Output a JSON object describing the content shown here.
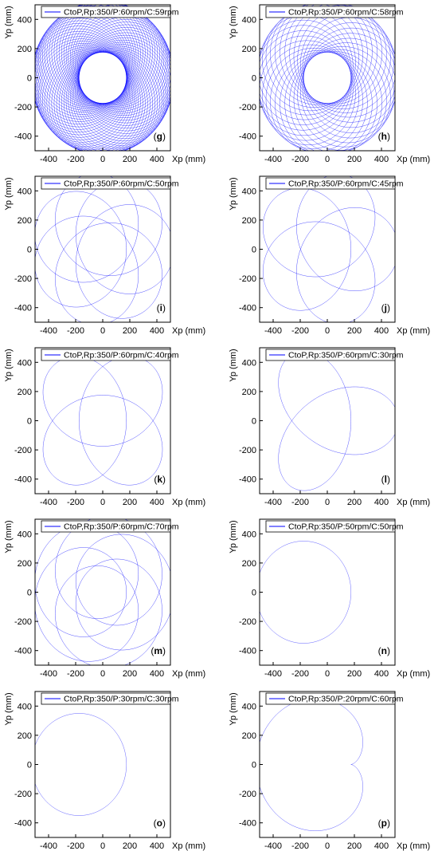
{
  "chart_data": [
    {
      "type": "line",
      "panel_label": "g",
      "legend": "CtoP,Rp:350/P:60rpm/C:59rpm",
      "series": [
        {
          "name": "CtoP,Rp:350/P:60rpm/C:59rpm",
          "color": "#0000ff"
        }
      ],
      "xlabel": "Xp (mm)",
      "ylabel": "Yp (mm)",
      "xlim": [
        -500,
        500
      ],
      "ylim": [
        -500,
        500
      ],
      "xticks": [
        -400,
        -200,
        0,
        200,
        400
      ],
      "yticks": [
        -400,
        -200,
        0,
        200,
        400
      ],
      "R": 350,
      "P_rpm": 60,
      "C_rpm": 59
    },
    {
      "type": "line",
      "panel_label": "h",
      "legend": "CtoP,Rp:350/P:60rpm/C:58rpm",
      "series": [
        {
          "name": "CtoP,Rp:350/P:60rpm/C:58rpm",
          "color": "#0000ff"
        }
      ],
      "xlabel": "Xp (mm)",
      "ylabel": "Yp (mm)",
      "xlim": [
        -500,
        500
      ],
      "ylim": [
        -500,
        500
      ],
      "xticks": [
        -400,
        -200,
        0,
        200,
        400
      ],
      "yticks": [
        -400,
        -200,
        0,
        200,
        400
      ],
      "R": 350,
      "P_rpm": 60,
      "C_rpm": 58
    },
    {
      "type": "line",
      "panel_label": "i",
      "legend": "CtoP,Rp:350/P:60rpm/C:50rpm",
      "series": [
        {
          "name": "CtoP,Rp:350/P:60rpm/C:50rpm",
          "color": "#0000ff"
        }
      ],
      "xlabel": "Xp (mm)",
      "ylabel": "Yp (mm)",
      "xlim": [
        -500,
        500
      ],
      "ylim": [
        -500,
        500
      ],
      "xticks": [
        -400,
        -200,
        0,
        200,
        400
      ],
      "yticks": [
        -400,
        -200,
        0,
        200,
        400
      ],
      "R": 350,
      "P_rpm": 60,
      "C_rpm": 50
    },
    {
      "type": "line",
      "panel_label": "j",
      "legend": "CtoP,Rp:350/P:60rpm/C:45rpm",
      "series": [
        {
          "name": "CtoP,Rp:350/P:60rpm/C:45rpm",
          "color": "#0000ff"
        }
      ],
      "xlabel": "Xp (mm)",
      "ylabel": "Yp (mm)",
      "xlim": [
        -500,
        500
      ],
      "ylim": [
        -500,
        500
      ],
      "xticks": [
        -400,
        -200,
        0,
        200,
        400
      ],
      "yticks": [
        -400,
        -200,
        0,
        200,
        400
      ],
      "R": 350,
      "P_rpm": 60,
      "C_rpm": 45
    },
    {
      "type": "line",
      "panel_label": "k",
      "legend": "CtoP,Rp:350/P:60rpm/C:40rpm",
      "series": [
        {
          "name": "CtoP,Rp:350/P:60rpm/C:40rpm",
          "color": "#0000ff"
        }
      ],
      "xlabel": "Xp (mm)",
      "ylabel": "Yp (mm)",
      "xlim": [
        -500,
        500
      ],
      "ylim": [
        -500,
        500
      ],
      "xticks": [
        -400,
        -200,
        0,
        200,
        400
      ],
      "yticks": [
        -400,
        -200,
        0,
        200,
        400
      ],
      "R": 350,
      "P_rpm": 60,
      "C_rpm": 40
    },
    {
      "type": "line",
      "panel_label": "l",
      "legend": "CtoP,Rp:350/P:60rpm/C:30rpm",
      "series": [
        {
          "name": "CtoP,Rp:350/P:60rpm/C:30rpm",
          "color": "#0000ff"
        }
      ],
      "xlabel": "Xp (mm)",
      "ylabel": "Yp (mm)",
      "xlim": [
        -500,
        500
      ],
      "ylim": [
        -500,
        500
      ],
      "xticks": [
        -400,
        -200,
        0,
        200,
        400
      ],
      "yticks": [
        -400,
        -200,
        0,
        200,
        400
      ],
      "R": 350,
      "P_rpm": 60,
      "C_rpm": 30
    },
    {
      "type": "line",
      "panel_label": "m",
      "legend": "CtoP,Rp:350/P:60rpm/C:70rpm",
      "series": [
        {
          "name": "CtoP,Rp:350/P:60rpm/C:70rpm",
          "color": "#0000ff"
        }
      ],
      "xlabel": "Xp (mm)",
      "ylabel": "Yp (mm)",
      "xlim": [
        -500,
        500
      ],
      "ylim": [
        -500,
        500
      ],
      "xticks": [
        -400,
        -200,
        0,
        200,
        400
      ],
      "yticks": [
        -400,
        -200,
        0,
        200,
        400
      ],
      "R": 350,
      "P_rpm": 60,
      "C_rpm": 70
    },
    {
      "type": "line",
      "panel_label": "n",
      "legend": "CtoP,Rp:350/P:50rpm/C:50rpm",
      "series": [
        {
          "name": "CtoP,Rp:350/P:50rpm/C:50rpm",
          "color": "#0000ff"
        }
      ],
      "xlabel": "Xp (mm)",
      "ylabel": "Yp (mm)",
      "xlim": [
        -500,
        500
      ],
      "ylim": [
        -500,
        500
      ],
      "xticks": [
        -400,
        -200,
        0,
        200,
        400
      ],
      "yticks": [
        -400,
        -200,
        0,
        200,
        400
      ],
      "R": 350,
      "P_rpm": 50,
      "C_rpm": 50
    },
    {
      "type": "line",
      "panel_label": "o",
      "legend": "CtoP,Rp:350/P:30rpm/C:30rpm",
      "series": [
        {
          "name": "CtoP,Rp:350/P:30rpm/C:30rpm",
          "color": "#0000ff"
        }
      ],
      "xlabel": "Xp (mm)",
      "ylabel": "Yp (mm)",
      "xlim": [
        -500,
        500
      ],
      "ylim": [
        -500,
        500
      ],
      "xticks": [
        -400,
        -200,
        0,
        200,
        400
      ],
      "yticks": [
        -400,
        -200,
        0,
        200,
        400
      ],
      "R": 350,
      "P_rpm": 30,
      "C_rpm": 30
    },
    {
      "type": "line",
      "panel_label": "p",
      "legend": "CtoP,Rp:350/P:20rpm/C:60rpm",
      "series": [
        {
          "name": "CtoP,Rp:350/P:20rpm/C:60rpm",
          "color": "#0000ff"
        }
      ],
      "xlabel": "Xp (mm)",
      "ylabel": "Yp (mm)",
      "xlim": [
        -500,
        500
      ],
      "ylim": [
        -500,
        500
      ],
      "xticks": [
        -400,
        -200,
        0,
        200,
        400
      ],
      "yticks": [
        -400,
        -200,
        0,
        200,
        400
      ],
      "R": 350,
      "P_rpm": 20,
      "C_rpm": 60
    }
  ]
}
